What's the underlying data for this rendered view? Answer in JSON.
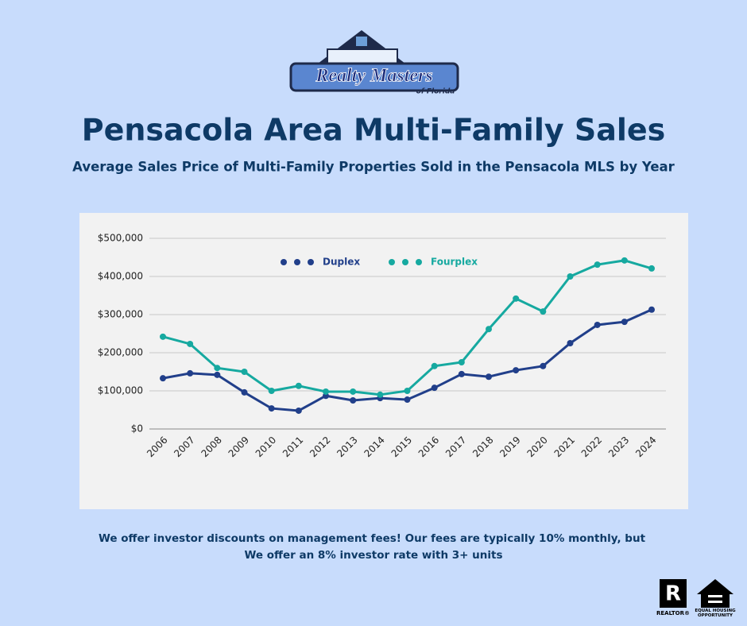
{
  "logo": {
    "name": "Realty Masters",
    "tagline": "of Florida"
  },
  "chart_data": {
    "type": "line",
    "title": "Pensacola Area Multi-Family Sales",
    "subtitle": "Average Sales Price of Multi-Family Properties Sold in the Pensacola MLS by Year",
    "categories": [
      "2006",
      "2007",
      "2008",
      "2009",
      "2010",
      "2011",
      "2012",
      "2013",
      "2014",
      "2015",
      "2016",
      "2017",
      "2018",
      "2019",
      "2020",
      "2021",
      "2022",
      "2023",
      "2024"
    ],
    "series": [
      {
        "name": "Duplex",
        "color": "#213f8a",
        "values": [
          133000,
          146000,
          142000,
          96000,
          54000,
          48000,
          87000,
          75000,
          81000,
          77000,
          108000,
          144000,
          137000,
          154000,
          165000,
          225000,
          273000,
          281000,
          313000
        ]
      },
      {
        "name": "Fourplex",
        "color": "#16a9a0",
        "values": [
          242000,
          223000,
          160000,
          150000,
          100000,
          113000,
          98000,
          98000,
          90000,
          100000,
          165000,
          175000,
          262000,
          342000,
          308000,
          400000,
          431000,
          442000,
          421000
        ]
      }
    ],
    "ylim": [
      0,
      500000
    ],
    "yticks": [
      {
        "value": 0,
        "label": "$0"
      },
      {
        "value": 100000,
        "label": "$100,000"
      },
      {
        "value": 200000,
        "label": "$200,000"
      },
      {
        "value": 300000,
        "label": "$300,000"
      },
      {
        "value": 400000,
        "label": "$400,000"
      },
      {
        "value": 500000,
        "label": "$500,000"
      }
    ],
    "grid": true,
    "legend": "top"
  },
  "footer": {
    "lines": [
      "We offer investor discounts on management fees! Our fees are typically 10% monthly, but",
      "We offer an 8% investor rate with 3+ units"
    ]
  },
  "badges": [
    "REALTOR®",
    "EQUAL HOUSING OPPORTUNITY"
  ]
}
